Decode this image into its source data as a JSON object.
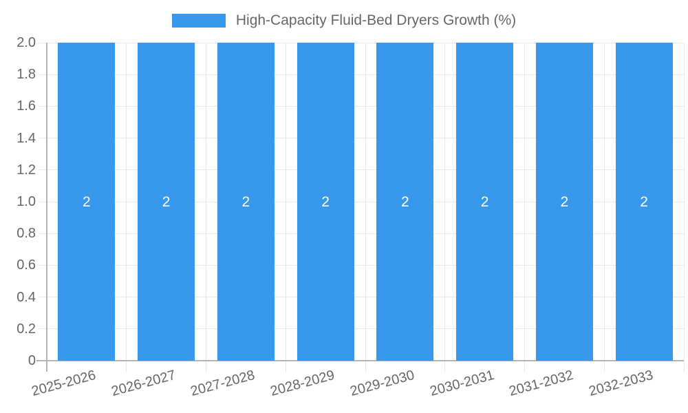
{
  "chart_data": {
    "type": "bar",
    "legend": "High-Capacity Fluid-Bed Dryers Growth (%)",
    "categories": [
      "2025-2026",
      "2026-2027",
      "2027-2028",
      "2028-2029",
      "2029-2030",
      "2030-2031",
      "2031-2032",
      "2032-2033"
    ],
    "values": [
      2,
      2,
      2,
      2,
      2,
      2,
      2,
      2
    ],
    "bar_value_labels": [
      "2",
      "2",
      "2",
      "2",
      "2",
      "2",
      "2",
      "2"
    ],
    "y_ticks": [
      "2.0",
      "1.8",
      "1.6",
      "1.4",
      "1.2",
      "1.0",
      "0.8",
      "0.6",
      "0.4",
      "0.2",
      "0"
    ],
    "ylim": [
      0,
      2
    ],
    "xlabel": "",
    "ylabel": "",
    "grid": true,
    "legend_position": "top-center",
    "colors": {
      "bar": "#3898EC",
      "value_label": "#FFFFFF",
      "axis_text": "#666666",
      "legend_text": "#666666",
      "grid_line": "#E8E8E8",
      "axis_line": "#B3B3B3",
      "background": "#FFFFFF"
    }
  }
}
